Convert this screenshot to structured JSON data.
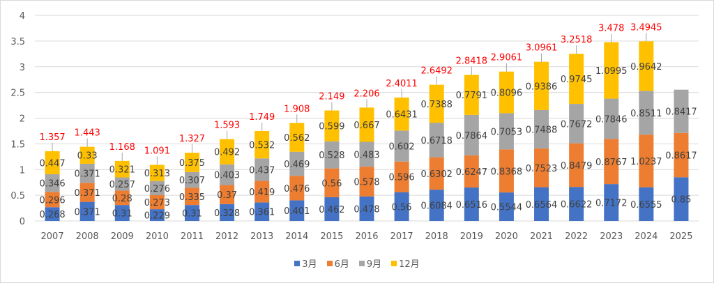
{
  "chart_data": {
    "type": "bar",
    "stacked": true,
    "title": "",
    "xlabel": "",
    "ylabel": "",
    "ylim": [
      0,
      4
    ],
    "yticks": [
      "0",
      "0.5",
      "1",
      "1.5",
      "2",
      "2.5",
      "3",
      "3.5",
      "4"
    ],
    "grid": true,
    "legend_position": "bottom",
    "categories": [
      "2007",
      "2008",
      "2009",
      "2010",
      "2011",
      "2012",
      "2013",
      "2014",
      "2015",
      "2016",
      "2017",
      "2018",
      "2019",
      "2020",
      "2021",
      "2022",
      "2023",
      "2024",
      "2025"
    ],
    "series": [
      {
        "name": "3月",
        "color": "#4472c4",
        "values": [
          0.268,
          0.371,
          0.31,
          0.229,
          0.31,
          0.328,
          0.361,
          0.401,
          0.462,
          0.478,
          0.56,
          0.6084,
          0.6516,
          0.5544,
          0.6564,
          0.6622,
          0.7172,
          0.6555,
          0.85
        ],
        "labels": [
          "0.268",
          "0.371",
          "0.31",
          "0.229",
          "0.31",
          "0.328",
          "0.361",
          "0.401",
          "0.462",
          "0.478",
          "0.56",
          "0.6084",
          "0.6516",
          "0.5544",
          "0.6564",
          "0.6622",
          "0.7172",
          "0.6555",
          "0.85"
        ]
      },
      {
        "name": "6月",
        "color": "#ed7d31",
        "values": [
          0.296,
          0.371,
          0.28,
          0.273,
          0.335,
          0.37,
          0.419,
          0.476,
          0.56,
          0.578,
          0.596,
          0.6302,
          0.6247,
          0.8368,
          0.7523,
          0.8479,
          0.8767,
          1.0237,
          0.8617
        ],
        "labels": [
          "0.296",
          "0.371",
          "0.28",
          "0.273",
          "0.335",
          "0.37",
          "0.419",
          "0.476",
          "0.56",
          "0.578",
          "0.596",
          "0.6302",
          "0.6247",
          "0.8368",
          "0.7523",
          "0.8479",
          "0.8767",
          "1.0237",
          "0.8617"
        ]
      },
      {
        "name": "9月",
        "color": "#a5a5a5",
        "values": [
          0.346,
          0.371,
          0.257,
          0.276,
          0.307,
          0.403,
          0.437,
          0.469,
          0.528,
          0.483,
          0.602,
          0.6718,
          0.7864,
          0.7053,
          0.7488,
          0.7672,
          0.7846,
          0.8511,
          0.8417
        ],
        "labels": [
          "0.346",
          "0.371",
          "0.257",
          "0.276",
          "0.307",
          "0.403",
          "0.437",
          "0.469",
          "0.528",
          "0.483",
          "0.602",
          "0.6718",
          "0.7864",
          "0.7053",
          "0.7488",
          "0.7672",
          "0.7846",
          "0.8511",
          "0.8417"
        ]
      },
      {
        "name": "12月",
        "color": "#ffc000",
        "values": [
          0.447,
          0.33,
          0.321,
          0.313,
          0.375,
          0.492,
          0.532,
          0.562,
          0.599,
          0.667,
          0.6431,
          0.7388,
          0.7791,
          0.8096,
          0.9386,
          0.9745,
          1.0995,
          0.9642,
          null
        ],
        "labels": [
          "0.447",
          "0.33",
          "0.321",
          "0.313",
          "0.375",
          "0.492",
          "0.532",
          "0.562",
          "0.599",
          "0.667",
          "0.6431",
          "0.7388",
          "0.7791",
          "0.8096",
          "0.9386",
          "0.9745",
          "1.0995",
          "0.9642",
          ""
        ]
      }
    ],
    "totals": [
      1.357,
      1.443,
      1.168,
      1.091,
      1.327,
      1.593,
      1.749,
      1.908,
      2.149,
      2.206,
      2.4011,
      2.6492,
      2.8418,
      2.9061,
      3.0961,
      3.2518,
      3.478,
      3.4945,
      null
    ],
    "total_labels": [
      "1.357",
      "1.443",
      "1.168",
      "1.091",
      "1.327",
      "1.593",
      "1.749",
      "1.908",
      "2.149",
      "2.206",
      "2.4011",
      "2.6492",
      "2.8418",
      "2.9061",
      "3.0961",
      "3.2518",
      "3.478",
      "3.4945",
      ""
    ],
    "total_label_color": "#ff0000"
  }
}
